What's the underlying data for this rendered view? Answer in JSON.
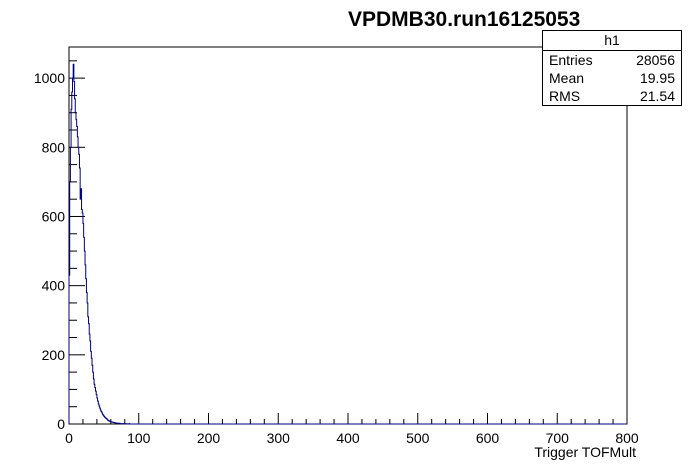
{
  "chart_data": {
    "type": "histogram",
    "title": "VPDMB30.run16125053",
    "xlabel": "Trigger TOFMult",
    "ylabel": "",
    "xlim": [
      0,
      800
    ],
    "ylim": [
      0,
      1090
    ],
    "xticks": [
      0,
      100,
      200,
      300,
      400,
      500,
      600,
      700,
      800
    ],
    "yticks": [
      0,
      200,
      400,
      600,
      800,
      1000
    ],
    "grid": false,
    "line_color": "#000080",
    "bin_width": 1,
    "bins_x": [
      0,
      1,
      2,
      3,
      4,
      5,
      6,
      7,
      8,
      9,
      10,
      11,
      12,
      13,
      14,
      15,
      16,
      17,
      18,
      19,
      20,
      21,
      22,
      23,
      24,
      25,
      26,
      27,
      28,
      29,
      30,
      31,
      32,
      33,
      34,
      35,
      36,
      37,
      38,
      39,
      40,
      41,
      42,
      43,
      44,
      45,
      46,
      47,
      48,
      49,
      50,
      51,
      52,
      53,
      54,
      55,
      56,
      57,
      58,
      59,
      60,
      61,
      62,
      63,
      64,
      65,
      66,
      67,
      68,
      69,
      70,
      71,
      72,
      73,
      74,
      75,
      76,
      77,
      78,
      79,
      80,
      81,
      82,
      83,
      84,
      85,
      86,
      87,
      88,
      89
    ],
    "counts": [
      430,
      700,
      800,
      910,
      960,
      1000,
      1040,
      990,
      940,
      900,
      880,
      860,
      830,
      800,
      780,
      740,
      650,
      680,
      620,
      610,
      580,
      540,
      500,
      460,
      420,
      380,
      350,
      310,
      290,
      260,
      240,
      210,
      190,
      170,
      150,
      130,
      115,
      105,
      95,
      85,
      75,
      66,
      58,
      52,
      46,
      40,
      36,
      32,
      28,
      25,
      22,
      20,
      18,
      16,
      14,
      12,
      10,
      9,
      8,
      7,
      6,
      6,
      5,
      5,
      4,
      4,
      3,
      3,
      3,
      2,
      2,
      2,
      2,
      1,
      1,
      1,
      1,
      1,
      0,
      1,
      0,
      0,
      1,
      0,
      0,
      0,
      1,
      0,
      0,
      0
    ],
    "stats": {
      "name": "h1",
      "entries_label": "Entries",
      "entries": "28056",
      "mean_label": "Mean",
      "mean": "19.95",
      "rms_label": "RMS",
      "rms": "21.54"
    }
  }
}
